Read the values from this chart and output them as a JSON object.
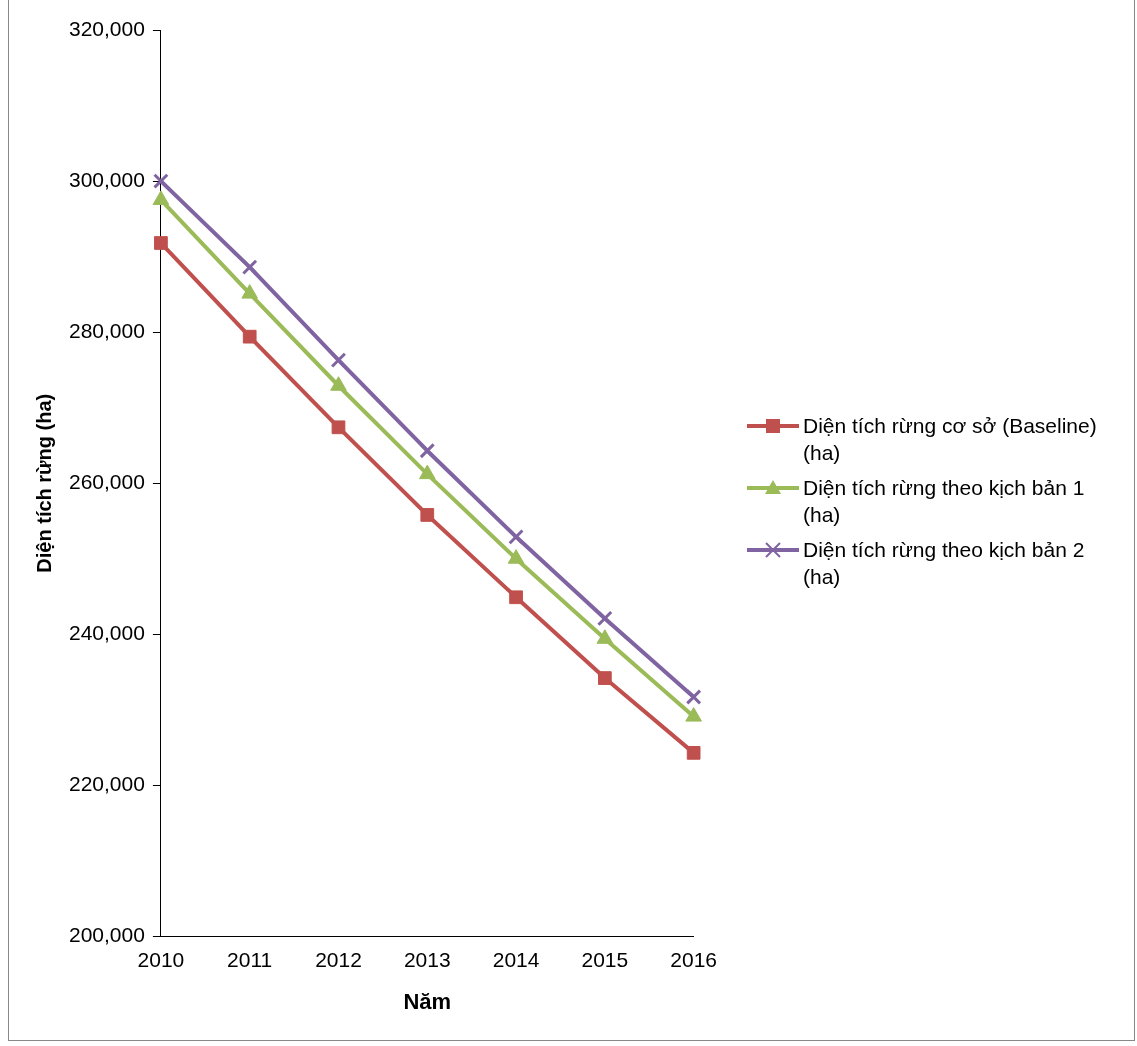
{
  "chart_data": {
    "type": "line",
    "xlabel": "Năm",
    "ylabel": "Diện tích rừng (ha)",
    "categories": [
      "2010",
      "2011",
      "2012",
      "2013",
      "2014",
      "2015",
      "2016"
    ],
    "ylim": [
      200000,
      320000
    ],
    "yticks": [
      {
        "value": 200000,
        "label": "200,000"
      },
      {
        "value": 220000,
        "label": "220,000"
      },
      {
        "value": 240000,
        "label": "240,000"
      },
      {
        "value": 260000,
        "label": "260,000"
      },
      {
        "value": 280000,
        "label": "280,000"
      },
      {
        "value": 300000,
        "label": "300,000"
      },
      {
        "value": 320000,
        "label": "320,000"
      }
    ],
    "grid": false,
    "legend": "right",
    "series": [
      {
        "name": "Diện tích rừng cơ sở (Baseline) (ha)",
        "color": "#c0504d",
        "marker": "square",
        "values": [
          291800,
          279400,
          267400,
          255800,
          244900,
          234200,
          224300
        ]
      },
      {
        "name": "Diện tích rừng theo kịch bản 1 (ha)",
        "color": "#9bbb59",
        "marker": "triangle",
        "values": [
          297500,
          285100,
          272900,
          261200,
          250000,
          239400,
          229100
        ]
      },
      {
        "name": "Diện tích rừng theo kịch bản 2 (ha)",
        "color": "#8064a2",
        "marker": "cross",
        "values": [
          300000,
          288600,
          276300,
          264300,
          252900,
          242100,
          231700
        ]
      }
    ]
  }
}
